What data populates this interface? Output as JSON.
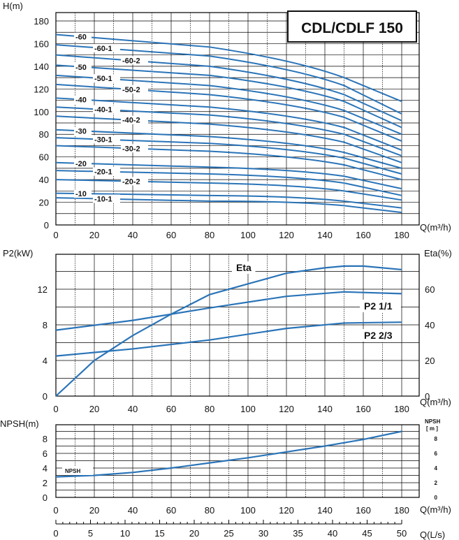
{
  "colors": {
    "curve": "#2a74b8",
    "grid": "#000000",
    "text": "#111111"
  },
  "title": "CDL/CDLF 150",
  "panels": [
    {
      "id": "head",
      "ylabel": "H(m)",
      "xlabel": "Q(m³/h)",
      "yticks": [
        "0",
        "20",
        "40",
        "60",
        "80",
        "100",
        "120",
        "140",
        "160",
        "180"
      ],
      "xticks": [
        "0",
        "20",
        "40",
        "60",
        "80",
        "100",
        "120",
        "140",
        "160",
        "180"
      ]
    },
    {
      "id": "power",
      "ylabel": "P2(kW)",
      "ylabel2": "Eta(%)",
      "xlabel": "Q(m³/h)",
      "yticks": [
        "0",
        "4",
        "8",
        "12"
      ],
      "yticks2": [
        "0",
        "20",
        "40",
        "60"
      ],
      "xticks": [
        "0",
        "20",
        "40",
        "60",
        "80",
        "100",
        "120",
        "140",
        "160",
        "180"
      ]
    },
    {
      "id": "npsh",
      "ylabel": "NPSH(m)",
      "ylabel2": "NPSH",
      "ylabel2b": "[ m ]",
      "xlabel": "Q(m³/h)",
      "xlabel2": "Q(L/s)",
      "yticks": [
        "0",
        "2",
        "4",
        "6",
        "8"
      ],
      "yticks2": [
        "0",
        "2",
        "4",
        "6",
        "8"
      ],
      "xticks": [
        "0",
        "20",
        "40",
        "60",
        "80",
        "100",
        "120",
        "140",
        "160",
        "180"
      ],
      "xticks2": [
        "0",
        "5",
        "10",
        "15",
        "20",
        "25",
        "30",
        "35",
        "40",
        "45",
        "50"
      ]
    }
  ],
  "chart_data": [
    {
      "type": "line",
      "x": [
        0,
        80,
        150,
        180
      ],
      "xlim": [
        0,
        180
      ],
      "ylim": [
        0,
        180
      ],
      "series": [
        {
          "name": "-60",
          "values": [
            168,
            157,
            130,
            109
          ]
        },
        {
          "name": "-60-1",
          "values": [
            159,
            149,
            123,
            98
          ]
        },
        {
          "name": "-60-2",
          "values": [
            150,
            140,
            115,
            92
          ]
        },
        {
          "name": "-50",
          "values": [
            141,
            132,
            109,
            86
          ]
        },
        {
          "name": "-50-1",
          "values": [
            132,
            123,
            101,
            80
          ]
        },
        {
          "name": "-50-2",
          "values": [
            124,
            115,
            95,
            74
          ]
        },
        {
          "name": "-40",
          "values": [
            112,
            104,
            86,
            66
          ]
        },
        {
          "name": "-40-1",
          "values": [
            104,
            97,
            80,
            61
          ]
        },
        {
          "name": "-40-2",
          "values": [
            96,
            89,
            73,
            55
          ]
        },
        {
          "name": "-30",
          "values": [
            84,
            78,
            64,
            50
          ]
        },
        {
          "name": "-30-1",
          "values": [
            77,
            72,
            59,
            45
          ]
        },
        {
          "name": "-30-2",
          "values": [
            70,
            65,
            53,
            40
          ]
        },
        {
          "name": "-20",
          "values": [
            55,
            51,
            43,
            32
          ]
        },
        {
          "name": "-20-1",
          "values": [
            48,
            45,
            37,
            26
          ]
        },
        {
          "name": "-20-2",
          "values": [
            40,
            37,
            30,
            22
          ]
        },
        {
          "name": "-10",
          "values": [
            28,
            26,
            21,
            15
          ]
        },
        {
          "name": "-10-1",
          "values": [
            24,
            21,
            17,
            11
          ]
        }
      ]
    },
    {
      "type": "line",
      "xlim": [
        0,
        180
      ],
      "ylim": [
        0,
        16
      ],
      "ylim_right": [
        0,
        80
      ],
      "series": [
        {
          "name": "Eta",
          "axis": "right",
          "x": [
            0,
            20,
            40,
            60,
            80,
            100,
            120,
            140,
            150,
            160,
            180
          ],
          "values": [
            0,
            20,
            34,
            46,
            57,
            63,
            69,
            72,
            73,
            73,
            71
          ]
        },
        {
          "name": "P2 1/1",
          "axis": "left",
          "x": [
            0,
            40,
            80,
            120,
            150,
            180
          ],
          "values": [
            7.4,
            8.5,
            9.9,
            11.2,
            11.7,
            11.5
          ]
        },
        {
          "name": "P2 2/3",
          "axis": "left",
          "x": [
            0,
            40,
            80,
            120,
            150,
            180
          ],
          "values": [
            4.5,
            5.3,
            6.3,
            7.6,
            8.2,
            8.3
          ]
        }
      ]
    },
    {
      "type": "line",
      "xlim": [
        0,
        180
      ],
      "ylim": [
        0,
        9
      ],
      "series": [
        {
          "name": "NPSH",
          "x": [
            0,
            20,
            40,
            60,
            80,
            100,
            120,
            140,
            160,
            180
          ],
          "values": [
            2.8,
            3.0,
            3.4,
            4.0,
            4.7,
            5.4,
            6.2,
            7.0,
            7.9,
            9.0
          ]
        }
      ]
    }
  ]
}
